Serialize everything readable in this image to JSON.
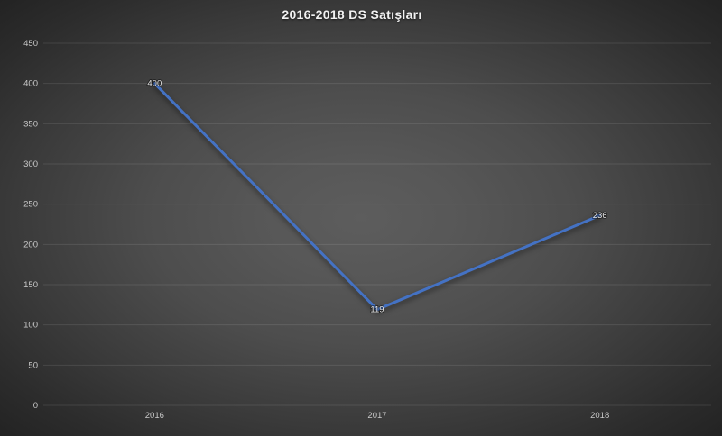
{
  "chart_data": {
    "type": "line",
    "title": "2016-2018 DS Satışları",
    "categories": [
      "2016",
      "2017",
      "2018"
    ],
    "series": [
      {
        "name": "DS Satışları",
        "values": [
          400,
          119,
          236
        ]
      }
    ],
    "data_labels": [
      "400",
      "119",
      "236"
    ],
    "xlabel": "",
    "ylabel": "",
    "ylim": [
      0,
      450
    ],
    "yticks": [
      0,
      50,
      100,
      150,
      200,
      250,
      300,
      350,
      400,
      450
    ],
    "grid": true,
    "legend": "none",
    "colors": {
      "line": "#4472C4",
      "tick_text": "#c9c9c9",
      "data_label_text": "#e8e8e8",
      "title_text": "#f2f2f2",
      "background_center": "#5a5a5a",
      "background_edge": "#232323",
      "gridline": "rgba(255,255,255,0.10)"
    }
  }
}
